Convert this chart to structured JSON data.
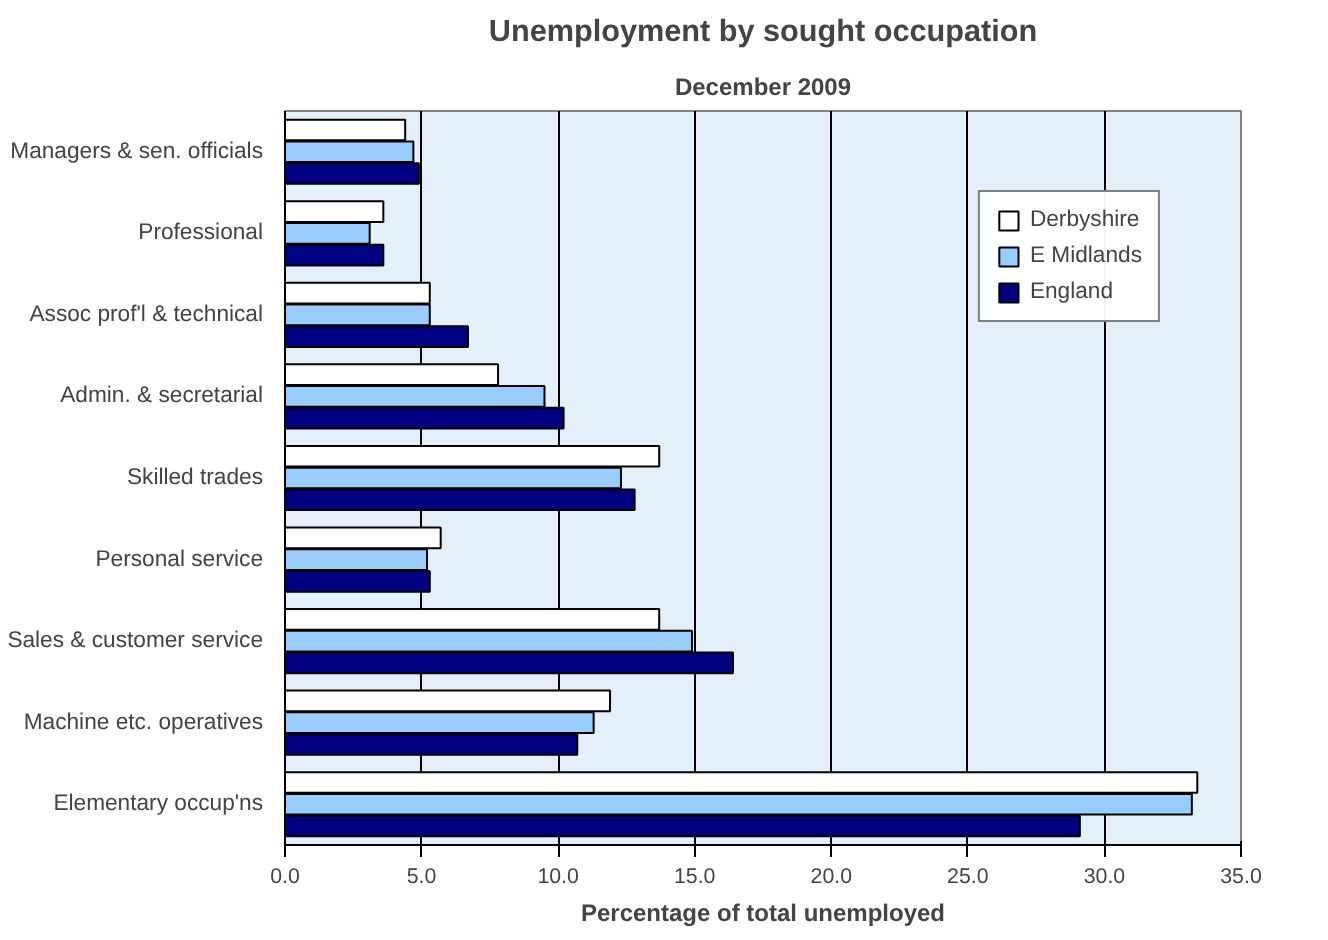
{
  "chart_data": {
    "type": "bar",
    "orientation": "horizontal",
    "title": "Unemployment by sought occupation",
    "subtitle": "December 2009",
    "xlabel": "Percentage of total unemployed",
    "categories": [
      "Managers & sen. officials",
      "Professional",
      "Assoc prof'l & technical",
      "Admin. & secretarial",
      "Skilled trades",
      "Personal service",
      "Sales & customer service",
      "Machine etc. operatives",
      "Elementary occup'ns"
    ],
    "series": [
      {
        "name": "Derbyshire",
        "color": "#ffffff",
        "values": [
          4.4,
          3.6,
          5.3,
          7.8,
          13.7,
          5.7,
          13.7,
          11.9,
          33.4
        ]
      },
      {
        "name": "E Midlands",
        "color": "#99ccff",
        "values": [
          4.7,
          3.1,
          5.3,
          9.5,
          12.3,
          5.2,
          14.9,
          11.3,
          33.2
        ]
      },
      {
        "name": "England",
        "color": "#000080",
        "values": [
          4.9,
          3.6,
          6.7,
          10.2,
          12.8,
          5.3,
          16.4,
          10.7,
          29.1
        ]
      }
    ],
    "xlim": [
      0,
      35
    ],
    "xticks": [
      {
        "value": 0,
        "label": "0.0"
      },
      {
        "value": 5,
        "label": "5.0"
      },
      {
        "value": 10,
        "label": "10.0"
      },
      {
        "value": 15,
        "label": "15.0"
      },
      {
        "value": 20,
        "label": "20.0"
      },
      {
        "value": 25,
        "label": "25.0"
      },
      {
        "value": 30,
        "label": "30.0"
      },
      {
        "value": 35,
        "label": "35.0"
      }
    ],
    "grid": "x",
    "legend": "top right"
  }
}
